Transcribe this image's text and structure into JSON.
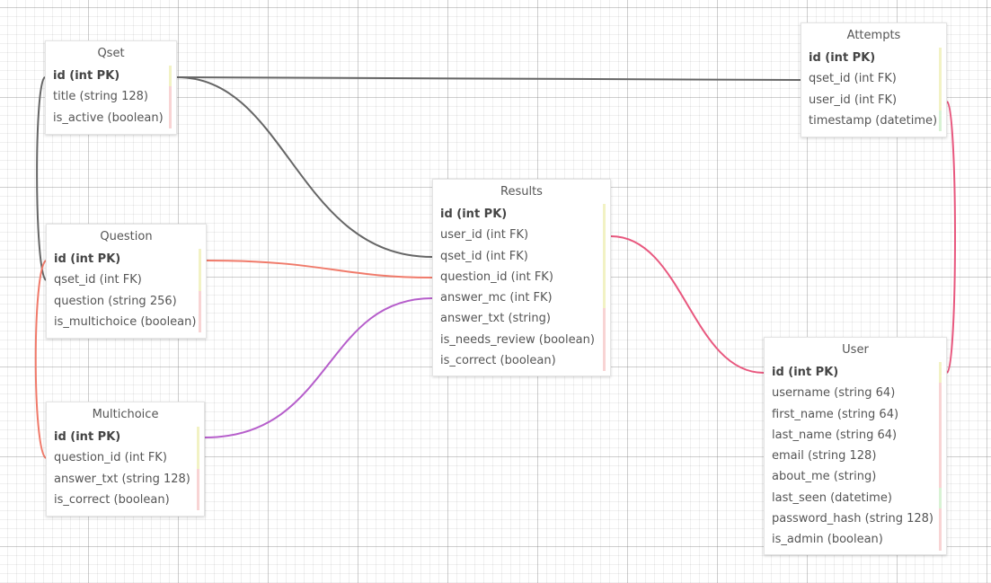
{
  "colors": {
    "qset_link": "#666666",
    "question_link": "#f07a6a",
    "multichoice_link": "#b65ecb",
    "user_link": "#e8577e",
    "pk_bar": "#f2f2c4",
    "text_bar": "#f8d4d4",
    "datetime_bar": "#d8f2d4"
  },
  "tables": {
    "qset": {
      "title": "Qset",
      "fields": [
        "id (int PK)",
        "title (string 128)",
        "is_active (boolean)"
      ]
    },
    "attempts": {
      "title": "Attempts",
      "fields": [
        "id (int PK)",
        "qset_id (int FK)",
        "user_id (int FK)",
        "timestamp (datetime)"
      ]
    },
    "results": {
      "title": "Results",
      "fields": [
        "id (int PK)",
        "user_id (int FK)",
        "qset_id (int FK)",
        "question_id (int FK)",
        "answer_mc (int FK)",
        "answer_txt (string)",
        "is_needs_review (boolean)",
        "is_correct (boolean)"
      ]
    },
    "question": {
      "title": "Question",
      "fields": [
        "id (int PK)",
        "qset_id (int FK)",
        "question (string 256)",
        "is_multichoice (boolean)"
      ]
    },
    "multichoice": {
      "title": "Multichoice",
      "fields": [
        "id (int PK)",
        "question_id (int FK)",
        "answer_txt (string 128)",
        "is_correct (boolean)"
      ]
    },
    "user": {
      "title": "User",
      "fields": [
        "id (int PK)",
        "username (string 64)",
        "first_name (string 64)",
        "last_name (string 64)",
        "email (string 128)",
        "about_me (string)",
        "last_seen (datetime)",
        "password_hash (string 128)",
        "is_admin (boolean)"
      ]
    }
  }
}
